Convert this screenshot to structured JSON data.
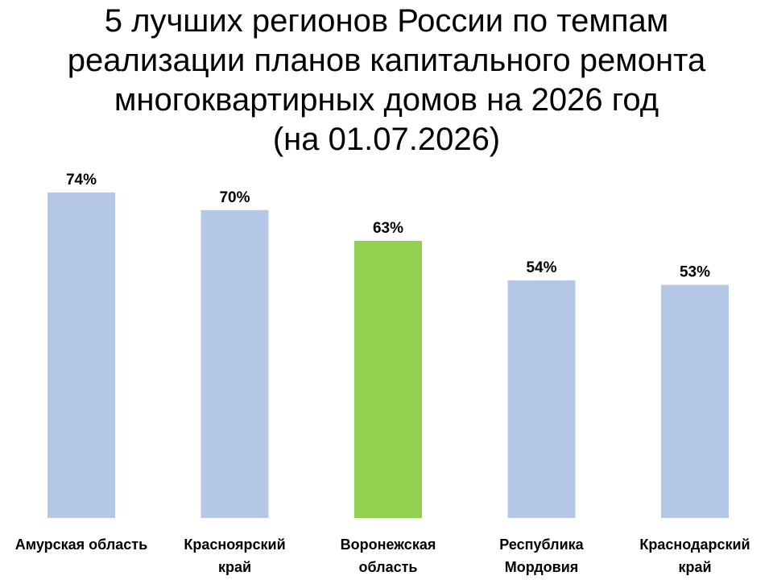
{
  "chart_data": {
    "type": "bar",
    "title": "5 лучших регионов России по темпам\nреализации планов капитального ремонта\nмногоквартирных домов на 2026 год\n(на 01.07.2026)",
    "categories": [
      "Амурская область",
      "Красноярский\nкрай",
      "Воронежская\nобласть",
      "Республика\nМордовия",
      "Краснодарский\nкрай"
    ],
    "values": [
      74,
      70,
      63,
      54,
      53
    ],
    "value_labels": [
      "74%",
      "70%",
      "63%",
      "54%",
      "53%"
    ],
    "colors": [
      "#b4c7e7",
      "#b4c7e7",
      "#92d050",
      "#b4c7e7",
      "#b4c7e7"
    ]
  }
}
